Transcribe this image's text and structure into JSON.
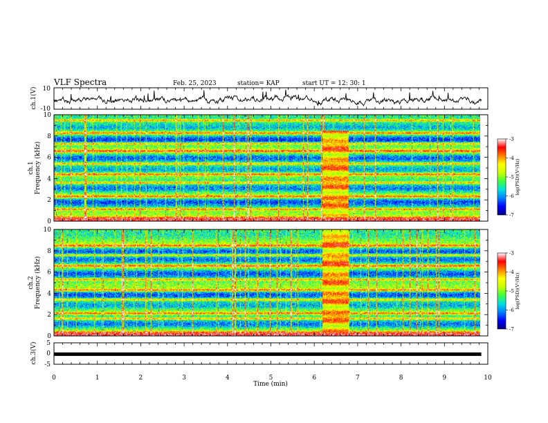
{
  "header": {
    "title": "VLF Spectra",
    "date": "Feb. 25, 2023",
    "station": "station= KAP",
    "start": "start  UT =   12: 30: 1"
  },
  "colors": {
    "waveform_line": "#000000",
    "colormap": [
      "#000080",
      "#0000ff",
      "#0080ff",
      "#00e0e0",
      "#40ff40",
      "#c8ff00",
      "#ffff00",
      "#ff8000",
      "#ff0000",
      "#ffffff"
    ]
  },
  "chart_data": [
    {
      "type": "line",
      "name": "ch1-waveform",
      "ylabel": "ch.1(V)",
      "ylim": [
        -10,
        10
      ],
      "yticks": [
        "10",
        "-10"
      ],
      "xlim": [
        0,
        10
      ],
      "x_end": 9.85,
      "noise_amplitude": 3.0,
      "envelope_min": [
        [
          0,
          -5
        ],
        [
          0.5,
          -4
        ],
        [
          1,
          -5
        ],
        [
          2,
          -4
        ],
        [
          3,
          -5
        ],
        [
          4,
          -4
        ],
        [
          5,
          -3
        ],
        [
          6,
          -4
        ],
        [
          6.2,
          -5
        ],
        [
          6.8,
          -4
        ],
        [
          7,
          -5
        ],
        [
          8,
          -5
        ],
        [
          9,
          -4
        ],
        [
          9.85,
          -5
        ]
      ]
    },
    {
      "type": "heatmap",
      "name": "ch1-spectrogram",
      "ylabel_line1": "ch.1",
      "ylabel_line2": "Frequency (kHz)",
      "xlim": [
        0,
        10
      ],
      "x_end": 9.85,
      "ylim": [
        0,
        10
      ],
      "yticks": [
        "0",
        "2",
        "4",
        "6",
        "8",
        "10"
      ],
      "colorbar": {
        "label": "log(PSD)(V²/Hz)",
        "range": [
          -7,
          -3
        ],
        "ticks": [
          "-3",
          "-4",
          "-5",
          "-6",
          "-7"
        ]
      },
      "emission_window_min": [
        6.2,
        6.8
      ],
      "emission_band_khz": [
        0.5,
        8.5
      ],
      "bright_bands_khz": [
        0.3,
        1.1,
        2.3,
        3.6,
        4.4,
        5.4,
        6.6,
        7.3,
        8.3,
        9.5
      ],
      "dark_bands_khz": [
        1.8,
        3.0,
        4.8,
        6.0,
        7.7,
        8.8
      ]
    },
    {
      "type": "heatmap",
      "name": "ch2-spectrogram",
      "ylabel_line1": "ch.2",
      "ylabel_line2": "Frequency (kHz)",
      "xlim": [
        0,
        10
      ],
      "x_end": 9.85,
      "ylim": [
        0,
        10
      ],
      "yticks": [
        "0",
        "2",
        "4",
        "6",
        "8",
        "10"
      ],
      "colorbar": {
        "label": "log(PSD)(V²/Hz)",
        "range": [
          -7,
          -3
        ],
        "ticks": [
          "-3",
          "-4",
          "-5",
          "-6",
          "-7"
        ]
      },
      "emission_window_min": [
        6.2,
        6.8
      ],
      "emission_band_khz": [
        0.3,
        10.0
      ],
      "bright_bands_khz": [
        0.3,
        1.6,
        2.1,
        3.4,
        4.3,
        5.3,
        6.6,
        7.6,
        8.5
      ],
      "dark_bands_khz": [
        1.0,
        2.8,
        3.9,
        5.9,
        7.1,
        8.0
      ]
    },
    {
      "type": "line",
      "name": "ch3-trace",
      "ylabel": "ch.3(V)",
      "ylim": [
        -5,
        5
      ],
      "yticks": [
        "5",
        "0",
        "-5"
      ],
      "xlim": [
        0,
        10
      ],
      "x_end": 9.85,
      "level": -0.3,
      "xlabel": "Time (min)",
      "xticks": [
        "0",
        "1",
        "2",
        "3",
        "4",
        "5",
        "6",
        "7",
        "8",
        "9",
        "10"
      ]
    }
  ]
}
